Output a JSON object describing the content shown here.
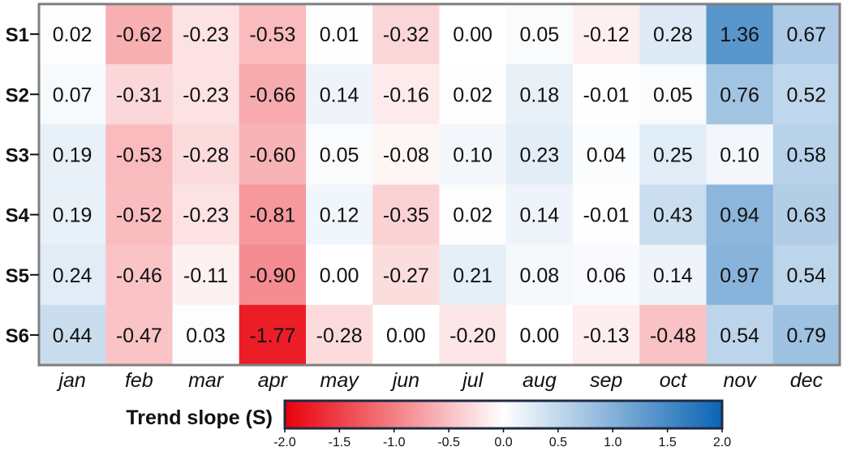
{
  "chart_data": {
    "type": "heatmap",
    "x_categories": [
      "jan",
      "feb",
      "mar",
      "apr",
      "may",
      "jun",
      "jul",
      "aug",
      "sep",
      "oct",
      "nov",
      "dec"
    ],
    "y_categories": [
      "S1",
      "S2",
      "S3",
      "S4",
      "S5",
      "S6"
    ],
    "values": [
      [
        "0.02",
        "-0.62",
        "-0.23",
        "-0.53",
        "0.01",
        "-0.32",
        "0.00",
        "0.05",
        "-0.12",
        "0.28",
        "1.36",
        "0.67"
      ],
      [
        "0.07",
        "-0.31",
        "-0.23",
        "-0.66",
        "0.14",
        "-0.16",
        "0.02",
        "0.18",
        "-0.01",
        "0.05",
        "0.76",
        "0.52"
      ],
      [
        "0.19",
        "-0.53",
        "-0.28",
        "-0.60",
        "0.05",
        "-0.08",
        "0.10",
        "0.23",
        "0.04",
        "0.25",
        "0.10",
        "0.58"
      ],
      [
        "0.19",
        "-0.52",
        "-0.23",
        "-0.81",
        "0.12",
        "-0.35",
        "0.02",
        "0.14",
        "-0.01",
        "0.43",
        "0.94",
        "0.63"
      ],
      [
        "0.24",
        "-0.46",
        "-0.11",
        "-0.90",
        "0.00",
        "-0.27",
        "0.21",
        "0.08",
        "0.06",
        "0.14",
        "0.97",
        "0.54"
      ],
      [
        "0.44",
        "-0.47",
        "0.03",
        "-1.77",
        "-0.28",
        "0.00",
        "-0.20",
        "0.00",
        "-0.13",
        "-0.48",
        "0.54",
        "0.79"
      ]
    ],
    "colorbar": {
      "label": "Trend slope (S)",
      "range": [
        -2.0,
        2.0
      ],
      "ticks": [
        "-2.0",
        "-1.5",
        "-1.0",
        "-0.5",
        "0.0",
        "0.5",
        "1.0",
        "1.5",
        "2.0"
      ],
      "colors": {
        "negative": "#e8000b",
        "zero": "#ffffff",
        "positive": "#0a64b4"
      }
    },
    "frame_color": "#7f7f7f"
  }
}
